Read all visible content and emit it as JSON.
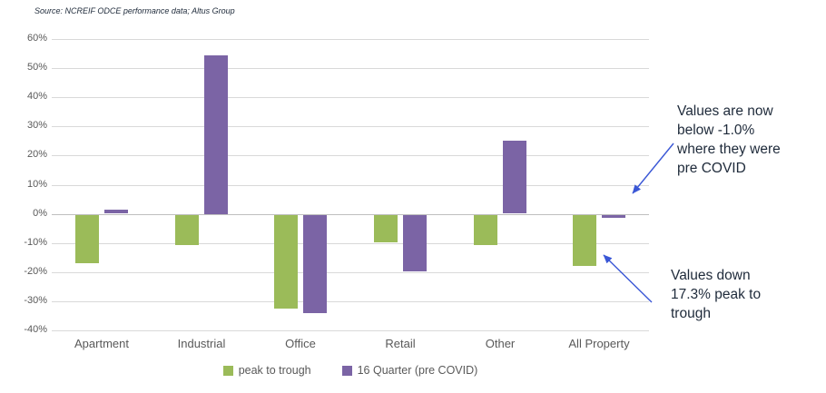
{
  "source_note": "Source: NCREIF ODCE performance data; Altus Group",
  "chart_data": {
    "type": "bar",
    "title": "",
    "xlabel": "",
    "ylabel": "",
    "categories": [
      "Apartment",
      "Industrial",
      "Office",
      "Retail",
      "Other",
      "All Property"
    ],
    "series": [
      {
        "name": "peak to trough",
        "color": "#9bbb59",
        "values": [
          -16.5,
          -10.4,
          -32.2,
          -9.2,
          -10.2,
          -17.3
        ]
      },
      {
        "name": "16 Quarter (pre COVID)",
        "color": "#7b64a5",
        "values": [
          1.3,
          54.5,
          -33.5,
          -19.4,
          25.0,
          -1.0
        ]
      }
    ],
    "ylim": [
      -40,
      60
    ],
    "ytick_step": 10,
    "ytick_labels": [
      "60%",
      "50%",
      "40%",
      "30%",
      "20%",
      "10%",
      "0%",
      "-10%",
      "-20%",
      "-30%",
      "-40%"
    ],
    "grid": true,
    "legend_position": "bottom"
  },
  "annotations": [
    {
      "text": "Values are now\nbelow -1.0%\nwhere they were\npre COVID"
    },
    {
      "text": "Values down\n17.3% peak to\ntrough"
    }
  ],
  "colors": {
    "arrow": "#3a57d6",
    "grid": "#d9d9d9",
    "series_green": "#9bbb59",
    "series_purple": "#7b64a5"
  }
}
